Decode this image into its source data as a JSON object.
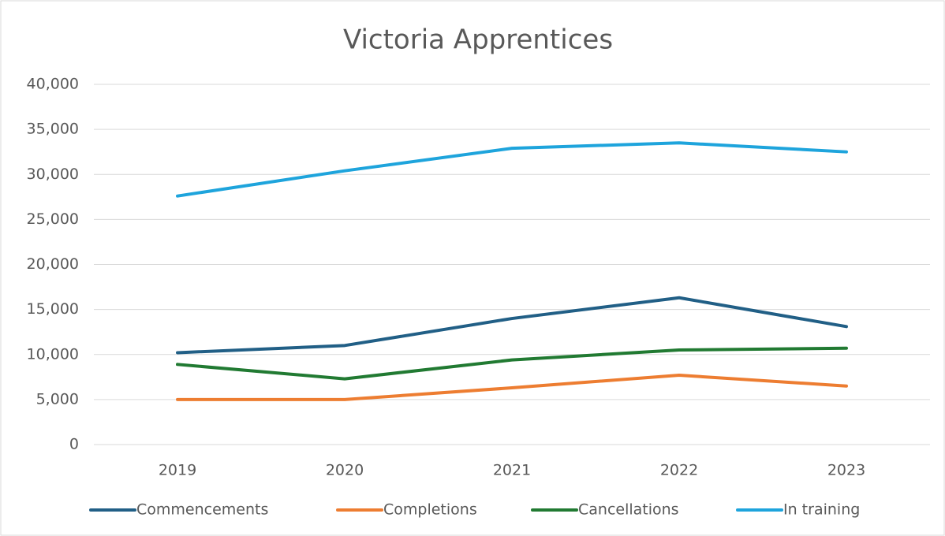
{
  "chart_data": {
    "type": "line",
    "title": "Victoria Apprentices",
    "categories": [
      "2019",
      "2020",
      "2021",
      "2022",
      "2023"
    ],
    "series": [
      {
        "name": "Commencements",
        "color": "#215f86",
        "values": [
          10200,
          11000,
          14000,
          16300,
          13100
        ]
      },
      {
        "name": "Completions",
        "color": "#ed7d31",
        "values": [
          5000,
          5000,
          6300,
          7700,
          6500
        ]
      },
      {
        "name": "Cancellations",
        "color": "#217a32",
        "values": [
          8900,
          7300,
          9400,
          10500,
          10700
        ]
      },
      {
        "name": "In training",
        "color": "#1ea4dc",
        "values": [
          27600,
          30400,
          32900,
          33500,
          32500
        ]
      }
    ],
    "ylim": [
      0,
      40000
    ],
    "yticks": [
      0,
      {
        "value": 5000,
        "label": "5,000"
      },
      {
        "value": 10000,
        "label": "10,000"
      },
      {
        "value": 15000,
        "label": "15,000"
      },
      {
        "value": 20000,
        "label": "20,000"
      },
      {
        "value": 25000,
        "label": "25,000"
      },
      {
        "value": 30000,
        "label": "30,000"
      },
      {
        "value": 35000,
        "label": "35,000"
      },
      {
        "value": 40000,
        "label": "40,000"
      }
    ],
    "grid": true,
    "legend": "bottom"
  }
}
